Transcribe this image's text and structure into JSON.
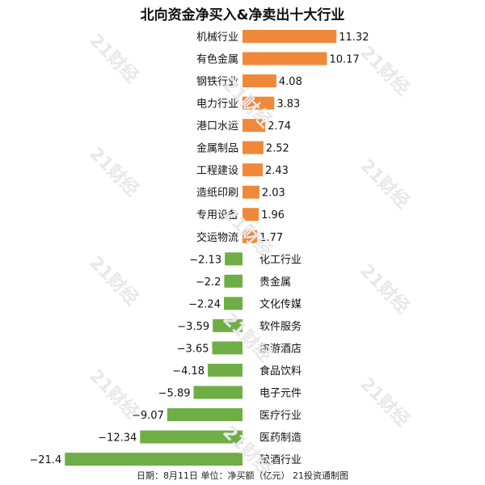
{
  "title": "北向资金净买入&净卖出十大行业",
  "footnote": "日期：8月11日 单位：净买额（亿元） 21投资通制图",
  "watermark": "21财经",
  "colors": {
    "positive": "#f0883a",
    "negative": "#6fae45"
  },
  "chart_data": {
    "type": "bar",
    "orientation": "horizontal",
    "title": "北向资金净买入&净卖出十大行业",
    "xlabel": "",
    "ylabel": "",
    "unit": "亿元",
    "xlim": [
      -21.4,
      11.32
    ],
    "grid": false,
    "legend": "none",
    "categories": [
      "机械行业",
      "有色金属",
      "钢铁行业",
      "电力行业",
      "港口水运",
      "金属制品",
      "工程建设",
      "造纸印刷",
      "专用设备",
      "交运物流",
      "化工行业",
      "贵金属",
      "文化传媒",
      "软件服务",
      "旅游酒店",
      "食品饮料",
      "电子元件",
      "医疗行业",
      "医药制造",
      "酿酒行业"
    ],
    "values": [
      11.32,
      10.17,
      4.08,
      3.83,
      2.74,
      2.52,
      2.43,
      2.03,
      1.96,
      1.77,
      -2.13,
      -2.2,
      -2.24,
      -3.59,
      -3.65,
      -4.18,
      -5.89,
      -9.07,
      -12.34,
      -21.4
    ],
    "value_labels": [
      "11.32",
      "10.17",
      "4.08",
      "3.83",
      "2.74",
      "2.52",
      "2.43",
      "2.03",
      "1.96",
      "1.77",
      "−2.13",
      "−2.2",
      "−2.24",
      "−3.59",
      "−3.65",
      "−4.18",
      "−5.89",
      "−9.07",
      "−12.34",
      "−21.4"
    ]
  }
}
